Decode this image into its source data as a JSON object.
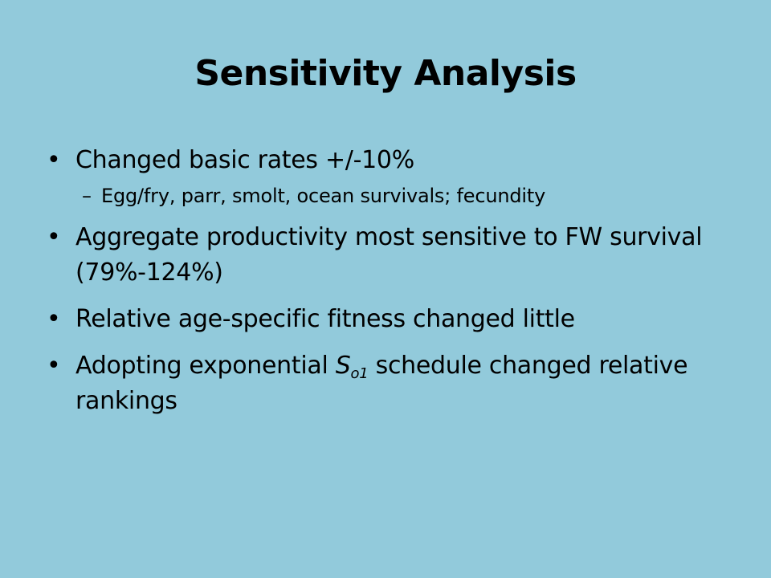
{
  "slide": {
    "title": "Sensitivity Analysis",
    "bullet_marker": "•",
    "sub_marker": "–",
    "bullets": [
      {
        "text": "Changed basic rates +/-10%",
        "sub": [
          "Egg/fry, parr, smolt, ocean survivals; fecundity"
        ]
      },
      {
        "text": "Aggregate productivity most sensitive to FW survival (79%-124%)"
      },
      {
        "text": "Relative age-specific fitness changed little"
      },
      {
        "text_before": "Adopting exponential ",
        "symbol": "S",
        "subscript": "o1",
        "text_after": " schedule changed relative rankings"
      }
    ]
  },
  "colors": {
    "background": "#92cadb",
    "text": "#000000"
  }
}
